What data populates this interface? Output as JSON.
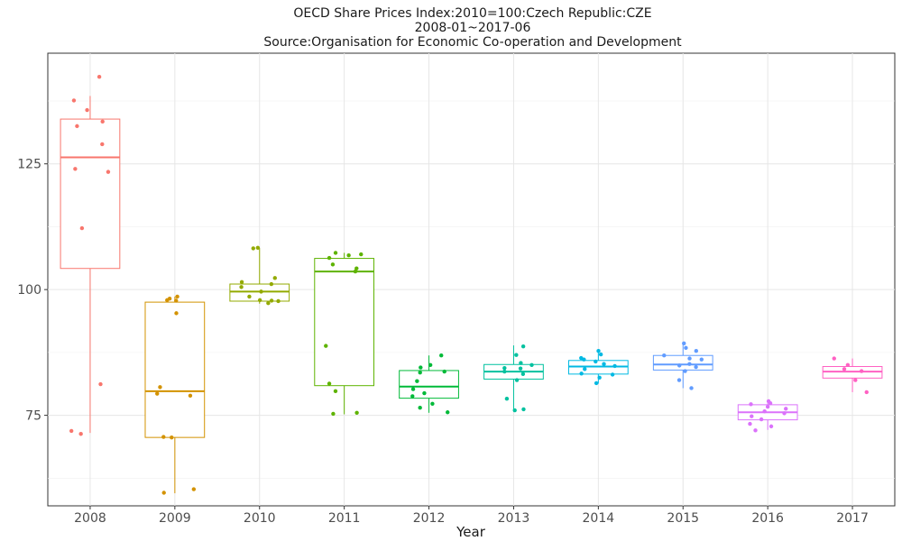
{
  "chart_data": {
    "type": "box",
    "title_lines": [
      "OECD Share Prices Index:2010=100:Czech Republic:CZE",
      "2008-01~2017-06",
      "Source:Organisation for Economic Co-operation and Development"
    ],
    "xlabel": "Year",
    "ylabel": "",
    "ylim": [
      57,
      147
    ],
    "yticks": [
      75,
      100,
      125
    ],
    "grid": true,
    "legend": "none",
    "categories": [
      "2008",
      "2009",
      "2010",
      "2011",
      "2012",
      "2013",
      "2014",
      "2015",
      "2016",
      "2017"
    ],
    "series": [
      {
        "category": "2008",
        "color": "#F8766D",
        "whisker_low": 71.5,
        "q1": 104.2,
        "median": 126.3,
        "q3": 133.9,
        "whisker_high": 138.5,
        "points": [
          142.3,
          137.6,
          135.7,
          133.4,
          132.5,
          128.9,
          124.0,
          123.4,
          112.2,
          81.2,
          71.9,
          71.3
        ]
      },
      {
        "category": "2009",
        "color": "#D39200",
        "whisker_low": 59.5,
        "q1": 70.6,
        "median": 79.8,
        "q3": 97.5,
        "whisker_high": 98.6,
        "points": [
          98.6,
          98.2,
          97.9,
          95.3,
          80.6,
          79.3,
          78.9,
          70.7,
          70.6,
          60.3,
          59.6,
          97.8
        ]
      },
      {
        "category": "2010",
        "color": "#93AA00",
        "whisker_low": 97.2,
        "q1": 97.7,
        "median": 99.6,
        "q3": 101.1,
        "whisker_high": 108.3,
        "points": [
          108.3,
          108.2,
          102.3,
          101.5,
          101.1,
          100.5,
          99.6,
          98.6,
          97.9,
          97.8,
          97.3,
          97.7
        ]
      },
      {
        "category": "2011",
        "color": "#5EB300",
        "whisker_low": 75.2,
        "q1": 80.9,
        "median": 103.6,
        "q3": 106.2,
        "whisker_high": 107.3,
        "points": [
          107.3,
          107.0,
          106.8,
          106.3,
          105.0,
          104.2,
          103.6,
          88.8,
          81.3,
          79.8,
          75.5,
          75.3
        ]
      },
      {
        "category": "2012",
        "color": "#00BA38",
        "whisker_low": 75.5,
        "q1": 78.4,
        "median": 80.7,
        "q3": 83.9,
        "whisker_high": 86.9,
        "points": [
          86.9,
          85.0,
          83.7,
          83.5,
          81.8,
          80.2,
          79.4,
          78.8,
          77.3,
          76.5,
          75.6,
          84.5
        ]
      },
      {
        "category": "2013",
        "color": "#00C19F",
        "whisker_low": 75.9,
        "q1": 82.2,
        "median": 83.7,
        "q3": 85.1,
        "whisker_high": 88.9,
        "points": [
          88.7,
          87.0,
          85.4,
          85.0,
          84.3,
          83.7,
          83.2,
          82.0,
          78.3,
          76.2,
          76.0,
          84.4
        ]
      },
      {
        "category": "2014",
        "color": "#00B9E3",
        "whisker_low": 81.3,
        "q1": 83.2,
        "median": 84.7,
        "q3": 85.9,
        "whisker_high": 87.8,
        "points": [
          87.8,
          87.1,
          86.1,
          85.7,
          84.8,
          84.2,
          83.3,
          83.1,
          82.5,
          81.4,
          85.2,
          86.4
        ]
      },
      {
        "category": "2015",
        "color": "#619CFF",
        "whisker_low": 80.4,
        "q1": 84.0,
        "median": 85.1,
        "q3": 86.9,
        "whisker_high": 89.3,
        "points": [
          89.3,
          88.4,
          87.8,
          86.9,
          86.3,
          85.2,
          84.6,
          83.8,
          82.0,
          80.4,
          86.1,
          84.9
        ]
      },
      {
        "category": "2016",
        "color": "#DB72FB",
        "whisker_low": 72.1,
        "q1": 74.1,
        "median": 75.6,
        "q3": 77.1,
        "whisker_high": 77.8,
        "points": [
          77.8,
          77.4,
          77.2,
          76.7,
          76.3,
          75.8,
          75.4,
          74.8,
          74.2,
          73.3,
          72.8,
          72.0
        ]
      },
      {
        "category": "2017",
        "color": "#FF61C3",
        "whisker_low": 79.6,
        "q1": 82.4,
        "median": 83.7,
        "q3": 84.7,
        "whisker_high": 86.3,
        "points": [
          86.3,
          85.0,
          84.2,
          82.0,
          79.6,
          83.8
        ]
      }
    ]
  }
}
